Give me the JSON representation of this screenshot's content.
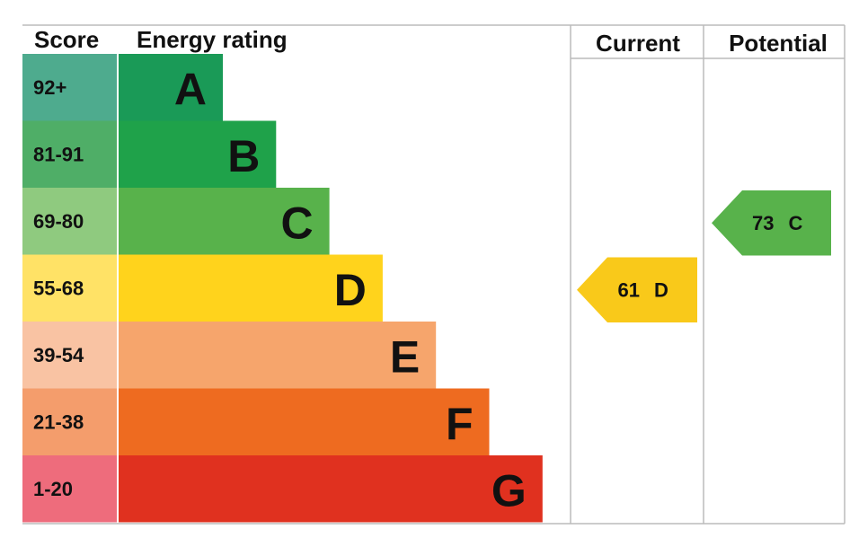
{
  "header": {
    "score": "Score",
    "energy_rating": "Energy rating",
    "current": "Current",
    "potential": "Potential"
  },
  "bands": [
    {
      "score": "92+",
      "rating": "A",
      "color": "#1a9a57",
      "score_color": "#4eab8e"
    },
    {
      "score": "81-91",
      "rating": "B",
      "color": "#1fa24a",
      "score_color": "#4fae67"
    },
    {
      "score": "69-80",
      "rating": "C",
      "color": "#58b24b",
      "score_color": "#8fca7f"
    },
    {
      "score": "55-68",
      "rating": "D",
      "color": "#ffd31c",
      "score_color": "#ffe266"
    },
    {
      "score": "39-54",
      "rating": "E",
      "color": "#f6a56c",
      "score_color": "#f9c3a3"
    },
    {
      "score": "21-38",
      "rating": "F",
      "color": "#ee6b20",
      "score_color": "#f49d6c"
    },
    {
      "score": "1-20",
      "rating": "G",
      "color": "#e0311f",
      "score_color": "#ee6c7c"
    }
  ],
  "current": {
    "value": 61,
    "rating": "D",
    "color": "#f9c91a"
  },
  "potential": {
    "value": 73,
    "rating": "C",
    "color": "#58b24b"
  }
}
